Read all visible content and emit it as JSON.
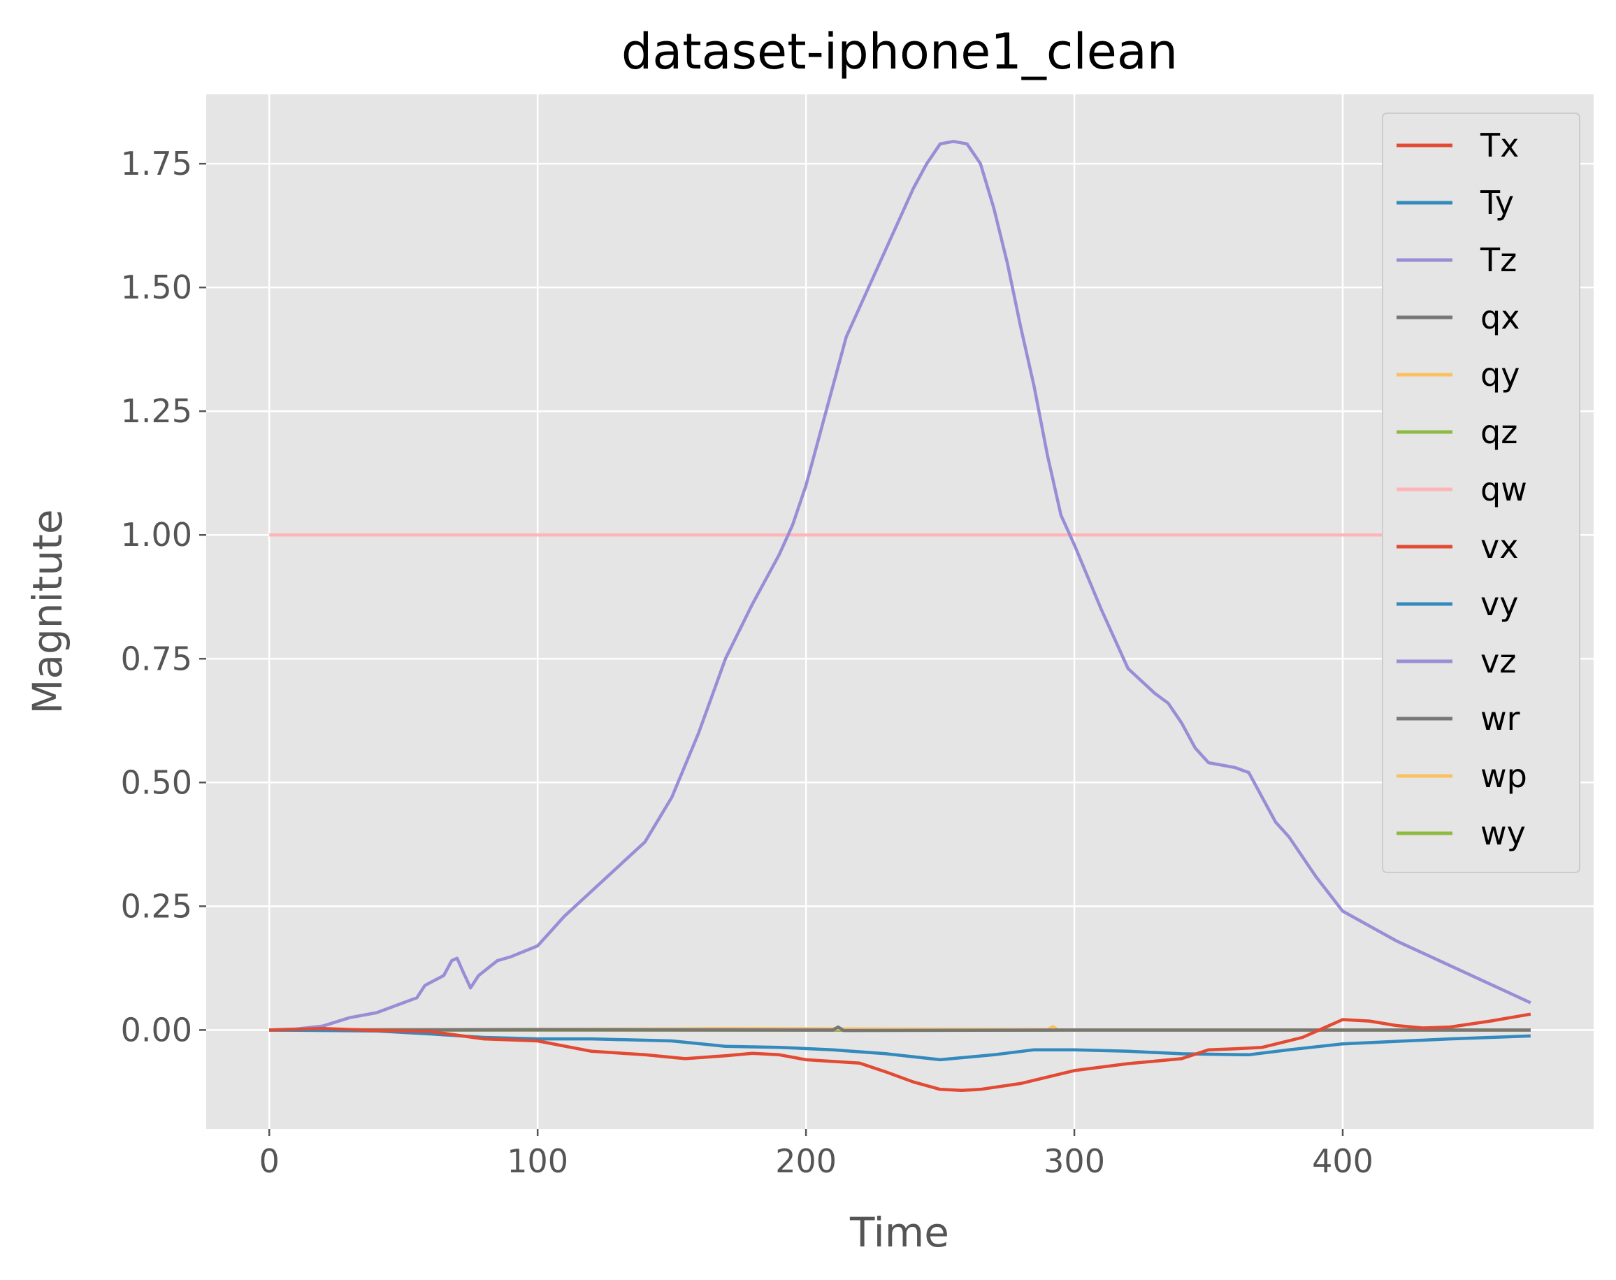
{
  "chart_data": {
    "type": "line",
    "title": "dataset-iphone1_clean",
    "xlabel": "Time",
    "ylabel": "Magnitute",
    "xlim": [
      -23.5,
      493.5
    ],
    "ylim": [
      -0.2,
      1.89
    ],
    "xticks": [
      0,
      100,
      200,
      300,
      400
    ],
    "yticks": [
      0.0,
      0.25,
      0.5,
      0.75,
      1.0,
      1.25,
      1.5,
      1.75
    ],
    "xtick_labels": [
      "0",
      "100",
      "200",
      "300",
      "400"
    ],
    "ytick_labels": [
      "0.00",
      "0.25",
      "0.50",
      "0.75",
      "1.00",
      "1.25",
      "1.50",
      "1.75"
    ],
    "grid": true,
    "legend_position": "top-right",
    "background": "#e5e5e5",
    "series": [
      {
        "name": "Tx",
        "color": "#e24a33",
        "x": [
          0,
          20,
          40,
          60,
          80,
          100,
          120,
          140,
          155,
          170,
          180,
          190,
          200,
          220,
          230,
          240,
          250,
          258,
          265,
          280,
          300,
          320,
          340,
          350,
          360,
          370,
          385,
          400,
          410,
          420,
          430,
          440,
          455,
          470
        ],
        "y": [
          0,
          0.003,
          -0.001,
          -0.003,
          -0.018,
          -0.022,
          -0.043,
          -0.05,
          -0.058,
          -0.052,
          -0.047,
          -0.05,
          -0.06,
          -0.067,
          -0.085,
          -0.105,
          -0.12,
          -0.122,
          -0.12,
          -0.108,
          -0.082,
          -0.068,
          -0.058,
          -0.04,
          -0.038,
          -0.035,
          -0.015,
          0.021,
          0.018,
          0.009,
          0.004,
          0.006,
          0.018,
          0.032
        ]
      },
      {
        "name": "Ty",
        "color": "#348abd",
        "x": [
          0,
          40,
          60,
          80,
          100,
          120,
          150,
          170,
          190,
          210,
          230,
          250,
          270,
          285,
          300,
          320,
          340,
          365,
          380,
          400,
          440,
          470
        ],
        "y": [
          0,
          -0.002,
          -0.008,
          -0.015,
          -0.018,
          -0.018,
          -0.022,
          -0.033,
          -0.035,
          -0.04,
          -0.048,
          -0.06,
          -0.05,
          -0.04,
          -0.04,
          -0.043,
          -0.048,
          -0.05,
          -0.04,
          -0.028,
          -0.018,
          -0.012
        ]
      },
      {
        "name": "Tz",
        "color": "#988ed5",
        "x": [
          0,
          10,
          20,
          30,
          40,
          50,
          55,
          58,
          65,
          68,
          70,
          72,
          75,
          78,
          85,
          90,
          100,
          110,
          120,
          140,
          150,
          160,
          170,
          180,
          190,
          195,
          200,
          210,
          215,
          220,
          225,
          230,
          235,
          240,
          245,
          250,
          255,
          260,
          265,
          270,
          275,
          280,
          285,
          290,
          295,
          300,
          310,
          320,
          330,
          335,
          340,
          345,
          350,
          355,
          360,
          365,
          370,
          375,
          380,
          390,
          400,
          420,
          440,
          460,
          470
        ],
        "y": [
          0,
          0.002,
          0.008,
          0.025,
          0.035,
          0.055,
          0.065,
          0.09,
          0.11,
          0.14,
          0.145,
          0.12,
          0.085,
          0.11,
          0.14,
          0.148,
          0.17,
          0.23,
          0.28,
          0.38,
          0.47,
          0.6,
          0.75,
          0.86,
          0.96,
          1.02,
          1.1,
          1.3,
          1.4,
          1.46,
          1.52,
          1.58,
          1.64,
          1.7,
          1.75,
          1.79,
          1.795,
          1.79,
          1.75,
          1.66,
          1.55,
          1.42,
          1.3,
          1.16,
          1.04,
          0.98,
          0.85,
          0.73,
          0.68,
          0.66,
          0.62,
          0.57,
          0.54,
          0.535,
          0.53,
          0.52,
          0.47,
          0.42,
          0.39,
          0.31,
          0.24,
          0.18,
          0.13,
          0.08,
          0.055
        ]
      },
      {
        "name": "qx",
        "color": "#777777",
        "x": [
          0,
          100,
          210,
          212,
          214,
          300,
          470
        ],
        "y": [
          0,
          0.001,
          0.0,
          0.006,
          -0.001,
          0.0,
          0.0
        ]
      },
      {
        "name": "qy",
        "color": "#fbc15e",
        "x": [
          0,
          150,
          170,
          290,
          292,
          294,
          470
        ],
        "y": [
          0,
          0.002,
          0.003,
          0.001,
          0.007,
          0.0,
          0.0
        ]
      },
      {
        "name": "qz",
        "color": "#8eba42",
        "x": [
          0,
          470
        ],
        "y": [
          0,
          0
        ]
      },
      {
        "name": "qw",
        "color": "#ffb5b8",
        "x": [
          0,
          470
        ],
        "y": [
          1.0,
          1.0
        ]
      },
      {
        "name": "vx",
        "color": "#e24a33",
        "x": [
          0,
          470
        ],
        "y": [
          0,
          0
        ]
      },
      {
        "name": "vy",
        "color": "#348abd",
        "x": [
          0,
          470
        ],
        "y": [
          0,
          0
        ]
      },
      {
        "name": "vz",
        "color": "#988ed5",
        "x": [
          0,
          470
        ],
        "y": [
          0,
          0
        ]
      },
      {
        "name": "wr",
        "color": "#777777",
        "x": [
          0,
          470
        ],
        "y": [
          0,
          0
        ]
      },
      {
        "name": "wp",
        "color": "#fbc15e",
        "x": [
          0,
          470
        ],
        "y": [
          0,
          0
        ]
      },
      {
        "name": "wy",
        "color": "#8eba42",
        "x": [
          0,
          470
        ],
        "y": [
          0,
          0
        ]
      }
    ]
  }
}
